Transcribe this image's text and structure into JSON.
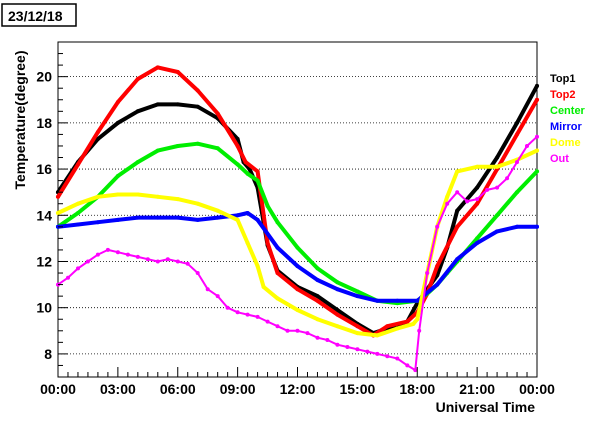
{
  "date_label": "23/12/18",
  "chart_data": {
    "type": "scatter",
    "title": "23/12/18",
    "xlabel": "Universal Time",
    "ylabel": "Temperature(degree)",
    "xlim": [
      0,
      24
    ],
    "ylim": [
      7,
      21.5
    ],
    "x_unit": "hours",
    "grid": "horizontal dotted",
    "legend_position": "right",
    "x_tick_labels": [
      {
        "x": 0,
        "label": "00:00"
      },
      {
        "x": 3,
        "label": "03:00"
      },
      {
        "x": 6,
        "label": "06:00"
      },
      {
        "x": 9,
        "label": "09:00"
      },
      {
        "x": 12,
        "label": "12:00"
      },
      {
        "x": 15,
        "label": "15:00"
      },
      {
        "x": 18,
        "label": "18:00"
      },
      {
        "x": 21,
        "label": "21:00"
      },
      {
        "x": 24,
        "label": "00:00"
      }
    ],
    "y_ticks": [
      8,
      10,
      12,
      14,
      16,
      18,
      20
    ],
    "series": [
      {
        "name": "Top1",
        "color": "#000000",
        "x": [
          0,
          1,
          2,
          3,
          4,
          5,
          6,
          7,
          8,
          9,
          9.3,
          9.6,
          10,
          10.5,
          11,
          12,
          13,
          14,
          15,
          15.8,
          16.5,
          17.5,
          18,
          18.5,
          19,
          19.5,
          20,
          21,
          22,
          23,
          24
        ],
        "y": [
          15.0,
          16.3,
          17.3,
          18.0,
          18.5,
          18.8,
          18.8,
          18.7,
          18.2,
          17.3,
          16.3,
          16.0,
          15.2,
          12.7,
          11.6,
          10.9,
          10.5,
          9.9,
          9.3,
          8.9,
          9.1,
          9.4,
          10.2,
          10.8,
          11.4,
          12.6,
          14.2,
          15.2,
          16.5,
          18.0,
          19.6
        ]
      },
      {
        "name": "Top2",
        "color": "#ff0000",
        "x": [
          0,
          1,
          2,
          3,
          4,
          5,
          6,
          7,
          8,
          9,
          9.4,
          10,
          10.5,
          11,
          12,
          13,
          14,
          15,
          15.8,
          16.5,
          17.5,
          18,
          18.5,
          19,
          20,
          21,
          22,
          23,
          24
        ],
        "y": [
          14.8,
          16.2,
          17.6,
          18.9,
          19.9,
          20.4,
          20.2,
          19.4,
          18.4,
          17.0,
          16.3,
          15.9,
          12.8,
          11.5,
          10.8,
          10.3,
          9.7,
          9.2,
          8.8,
          9.2,
          9.4,
          9.8,
          10.6,
          11.8,
          13.5,
          14.5,
          16.0,
          17.5,
          19.0
        ]
      },
      {
        "name": "Center",
        "color": "#00ee00",
        "x": [
          0,
          1,
          2,
          3,
          4,
          5,
          6,
          7,
          8,
          9,
          9.5,
          10,
          10.5,
          11,
          12,
          13,
          14,
          15,
          16,
          17,
          18,
          18.5,
          19,
          19.5,
          20,
          21,
          22,
          23,
          24
        ],
        "y": [
          13.5,
          14.1,
          14.8,
          15.7,
          16.3,
          16.8,
          17.0,
          17.1,
          16.9,
          16.2,
          15.8,
          15.5,
          14.4,
          13.7,
          12.6,
          11.7,
          11.1,
          10.7,
          10.3,
          10.2,
          10.3,
          10.6,
          11.0,
          11.5,
          12.0,
          13.0,
          14.0,
          15.0,
          15.9
        ]
      },
      {
        "name": "Mirror",
        "color": "#0000ff",
        "x": [
          0,
          1,
          2,
          3,
          4,
          5,
          6,
          7,
          8,
          9,
          9.5,
          10,
          11,
          12,
          13,
          14,
          15,
          16,
          17,
          18,
          19,
          20,
          21,
          22,
          23,
          24
        ],
        "y": [
          13.5,
          13.6,
          13.7,
          13.8,
          13.9,
          13.9,
          13.9,
          13.8,
          13.9,
          14.0,
          14.1,
          13.8,
          12.6,
          11.8,
          11.2,
          10.8,
          10.5,
          10.3,
          10.3,
          10.3,
          11.0,
          12.1,
          12.8,
          13.3,
          13.5,
          13.5
        ]
      },
      {
        "name": "Dome",
        "color": "#ffff00",
        "x": [
          0,
          1,
          2,
          3,
          4,
          5,
          6,
          7,
          8,
          9,
          9.5,
          10,
          10.3,
          11,
          12,
          13,
          14,
          15,
          16,
          17,
          17.8,
          18,
          18.5,
          19,
          19.5,
          20,
          21,
          22,
          23,
          24
        ],
        "y": [
          14.1,
          14.5,
          14.8,
          14.9,
          14.9,
          14.8,
          14.7,
          14.5,
          14.2,
          13.8,
          12.8,
          11.8,
          10.9,
          10.4,
          9.9,
          9.5,
          9.2,
          8.9,
          8.8,
          9.1,
          9.3,
          9.5,
          11.5,
          13.5,
          14.8,
          15.9,
          16.1,
          16.1,
          16.4,
          16.8
        ]
      },
      {
        "name": "Out",
        "color": "#ff00ff",
        "x": [
          0,
          0.5,
          1,
          1.5,
          2,
          2.5,
          3,
          3.5,
          4,
          4.5,
          5,
          5.5,
          6,
          6.5,
          7,
          7.5,
          8,
          8.5,
          9,
          9.5,
          10,
          10.5,
          11,
          11.5,
          12,
          12.5,
          13,
          13.5,
          14,
          14.5,
          15,
          15.5,
          16,
          16.5,
          17,
          17.5,
          17.9,
          18.1,
          18.5,
          19,
          19.5,
          20,
          20.5,
          21,
          21.5,
          22,
          22.5,
          23,
          23.5,
          24
        ],
        "y": [
          11.0,
          11.3,
          11.7,
          12.0,
          12.3,
          12.5,
          12.4,
          12.3,
          12.2,
          12.1,
          12.0,
          12.1,
          12.0,
          11.9,
          11.5,
          10.8,
          10.5,
          10.0,
          9.8,
          9.7,
          9.6,
          9.4,
          9.2,
          9.0,
          9.0,
          8.9,
          8.7,
          8.6,
          8.4,
          8.3,
          8.2,
          8.1,
          8.0,
          7.9,
          7.8,
          7.5,
          7.3,
          9.0,
          11.5,
          13.5,
          14.5,
          15.0,
          14.6,
          14.7,
          15.1,
          15.2,
          15.6,
          16.3,
          17.0,
          17.4
        ]
      }
    ]
  }
}
